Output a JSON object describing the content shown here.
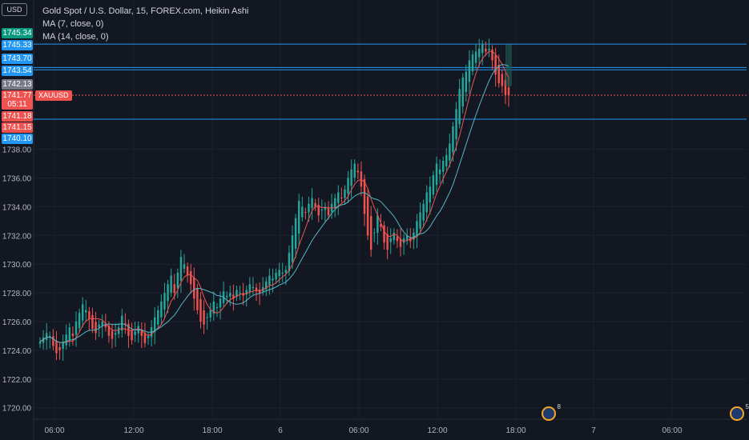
{
  "header": {
    "currency": "USD",
    "title": "Gold Spot / U.S. Dollar, 15, FOREX.com, Heikin Ashi",
    "indicators": [
      "MA (7, close, 0)",
      "MA (14, close, 0)"
    ]
  },
  "price_tags": [
    {
      "label": "1745.34",
      "color": "#089981",
      "y": 1745.34
    },
    {
      "label": "1745.33",
      "color": "#2196f3",
      "y": 1745.33
    },
    {
      "label": "1743.70",
      "color": "#2196f3",
      "y": 1743.7
    },
    {
      "label": "1743.54",
      "color": "#2196f3",
      "y": 1743.54
    },
    {
      "label": "1742.13",
      "color": "#787b86",
      "y": 1742.13
    },
    {
      "label": "1741.77",
      "color": "#ef5350",
      "y": 1741.77
    },
    {
      "label": "05:11",
      "color": "#ef5350",
      "y": 1741.77
    },
    {
      "label": "1741.18",
      "color": "#ef5350",
      "y": 1741.18
    },
    {
      "label": "1741.15",
      "color": "#ef5350",
      "y": 1741.15
    },
    {
      "label": "1740.10",
      "color": "#2196f3",
      "y": 1740.1
    }
  ],
  "symbol_tag": "XAUUSD",
  "events": [
    {
      "count": "8",
      "x": "18:00"
    },
    {
      "count": "5",
      "x": "06:00 +"
    }
  ],
  "chart_data": {
    "type": "candlestick",
    "ylim": [
      1719.2,
      1748.4
    ],
    "yticks": [
      1720.0,
      1722.0,
      1724.0,
      1726.0,
      1728.0,
      1730.0,
      1732.0,
      1734.0,
      1736.0,
      1738.0
    ],
    "xticks": [
      "06:00",
      "12:00",
      "18:00",
      "6",
      "06:00",
      "12:00",
      "18:00",
      "7",
      "06:00"
    ],
    "horizontal_lines": [
      {
        "y": 1745.33,
        "color": "#2196f3"
      },
      {
        "y": 1743.7,
        "color": "#2196f3"
      },
      {
        "y": 1743.54,
        "color": "#2196f3"
      },
      {
        "y": 1740.1,
        "color": "#2196f3"
      },
      {
        "y": 1741.77,
        "color": "#ef5350",
        "style": "dotted"
      }
    ],
    "close": [
      1724.6,
      1724.9,
      1725.2,
      1725.0,
      1724.3,
      1723.8,
      1724.0,
      1724.6,
      1725.1,
      1725.6,
      1725.0,
      1726.0,
      1726.6,
      1727.2,
      1726.8,
      1726.2,
      1725.5,
      1725.2,
      1725.8,
      1726.0,
      1725.6,
      1725.0,
      1724.8,
      1725.2,
      1725.6,
      1726.4,
      1725.8,
      1725.0,
      1724.7,
      1725.3,
      1725.7,
      1725.0,
      1724.5,
      1725.0,
      1725.6,
      1726.3,
      1726.8,
      1727.4,
      1728.0,
      1728.6,
      1729.2,
      1728.0,
      1729.4,
      1730.5,
      1730.0,
      1729.2,
      1728.6,
      1727.6,
      1726.8,
      1726.0,
      1725.8,
      1726.3,
      1726.8,
      1727.4,
      1727.0,
      1727.6,
      1728.1,
      1727.8,
      1728.0,
      1727.6,
      1728.2,
      1728.0,
      1727.8,
      1728.2,
      1728.6,
      1728.4,
      1728.1,
      1728.0,
      1728.4,
      1728.8,
      1729.2,
      1729.0,
      1729.4,
      1729.6,
      1729.4,
      1729.6,
      1730.8,
      1732.0,
      1733.2,
      1734.4,
      1734.0,
      1733.6,
      1734.2,
      1734.6,
      1734.0,
      1733.4,
      1733.8,
      1734.0,
      1733.4,
      1734.2,
      1734.6,
      1735.0,
      1734.6,
      1735.2,
      1736.0,
      1736.6,
      1737.0,
      1736.4,
      1735.4,
      1733.5,
      1732.0,
      1731.0,
      1732.2,
      1733.4,
      1732.6,
      1731.5,
      1731.0,
      1731.8,
      1732.2,
      1731.6,
      1731.2,
      1731.8,
      1732.0,
      1731.6,
      1732.2,
      1733.0,
      1733.6,
      1734.2,
      1735.0,
      1735.4,
      1736.2,
      1737.0,
      1736.6,
      1737.2,
      1737.6,
      1738.4,
      1739.6,
      1740.8,
      1742.2,
      1743.0,
      1743.4,
      1744.2,
      1744.6,
      1744.8,
      1745.0,
      1745.3,
      1744.8,
      1745.0,
      1744.2,
      1743.2,
      1742.6,
      1742.4,
      1741.8,
      1741.8
    ],
    "series": [
      {
        "name": "MA (7, close, 0)",
        "color": "#ef5350"
      },
      {
        "name": "MA (14, close, 0)",
        "color": "#56b6c2"
      }
    ]
  }
}
